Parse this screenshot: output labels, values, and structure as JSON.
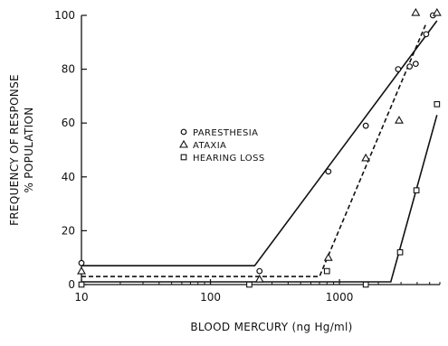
{
  "chart_data": {
    "type": "scatter",
    "xscale": "log",
    "xlim": [
      10,
      6000
    ],
    "ylim": [
      0,
      100
    ],
    "xticks": [
      10,
      100,
      1000
    ],
    "xtick_labels": [
      "10",
      "100",
      "1000"
    ],
    "yticks": [
      0,
      20,
      40,
      60,
      80,
      100
    ],
    "ytick_labels": [
      "0",
      "20",
      "40",
      "60",
      "80",
      "100"
    ],
    "xlabel": "BLOOD MERCURY (ng Hg/ml)",
    "ylabel": [
      "FREQUENCY OF RESPONSE",
      "% POPULATION"
    ],
    "grid": false,
    "legend_position": "center-left",
    "series": [
      {
        "name": "PARESTHESIA",
        "marker": "circle",
        "line": "solid",
        "color": "#111111",
        "points": [
          {
            "x": 10,
            "y": 8
          },
          {
            "x": 240,
            "y": 5
          },
          {
            "x": 820,
            "y": 42
          },
          {
            "x": 1600,
            "y": 59
          },
          {
            "x": 2850,
            "y": 80
          },
          {
            "x": 3500,
            "y": 81
          },
          {
            "x": 3900,
            "y": 82
          },
          {
            "x": 4700,
            "y": 93
          },
          {
            "x": 5300,
            "y": 100
          }
        ],
        "fit": [
          {
            "x": 10,
            "y": 7
          },
          {
            "x": 220,
            "y": 7
          },
          {
            "x": 5700,
            "y": 98
          }
        ]
      },
      {
        "name": "ATAXIA",
        "marker": "triangle",
        "line": "dashed",
        "color": "#111111",
        "points": [
          {
            "x": 10,
            "y": 5
          },
          {
            "x": 240,
            "y": 2
          },
          {
            "x": 820,
            "y": 10
          },
          {
            "x": 1600,
            "y": 47
          },
          {
            "x": 2900,
            "y": 61
          },
          {
            "x": 3900,
            "y": 101
          },
          {
            "x": 5700,
            "y": 101
          }
        ],
        "fit": [
          {
            "x": 10,
            "y": 3
          },
          {
            "x": 700,
            "y": 3
          },
          {
            "x": 4700,
            "y": 97
          }
        ]
      },
      {
        "name": "HEARING LOSS",
        "marker": "square",
        "line": "solid",
        "color": "#111111",
        "points": [
          {
            "x": 10,
            "y": 0
          },
          {
            "x": 200,
            "y": 0
          },
          {
            "x": 800,
            "y": 5
          },
          {
            "x": 1600,
            "y": 0
          },
          {
            "x": 2950,
            "y": 12
          },
          {
            "x": 3950,
            "y": 35
          },
          {
            "x": 5700,
            "y": 67
          }
        ],
        "fit": [
          {
            "x": 10,
            "y": 1
          },
          {
            "x": 2500,
            "y": 1
          },
          {
            "x": 5700,
            "y": 63
          }
        ]
      }
    ]
  }
}
